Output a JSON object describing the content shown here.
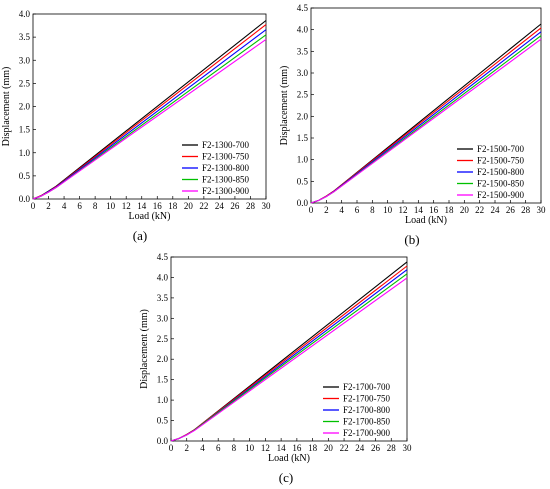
{
  "colors": {
    "axis": "#000000",
    "background": "#ffffff"
  },
  "chart_data": [
    {
      "type": "line",
      "panel_label": "(a)",
      "xlabel": "Load (kN)",
      "ylabel": "Displacement (mm)",
      "xlim": [
        0,
        30
      ],
      "ylim": [
        0,
        4.0
      ],
      "xticks": [
        "0",
        "2",
        "4",
        "6",
        "8",
        "10",
        "12",
        "14",
        "16",
        "18",
        "20",
        "22",
        "24",
        "26",
        "28",
        "30"
      ],
      "yticks": [
        "0.0",
        "0.5",
        "1.0",
        "1.5",
        "2.0",
        "2.5",
        "3.0",
        "3.5",
        "4.0"
      ],
      "legend_position": "bottom-right",
      "series": [
        {
          "name": "F2-1300-700",
          "color": "#000000",
          "x": [
            0,
            1,
            2,
            3,
            30
          ],
          "y": [
            0,
            0.07,
            0.17,
            0.28,
            3.86
          ]
        },
        {
          "name": "F2-1300-750",
          "color": "#ff0000",
          "x": [
            0,
            1,
            2,
            3,
            30
          ],
          "y": [
            0,
            0.07,
            0.16,
            0.27,
            3.77
          ]
        },
        {
          "name": "F2-1300-800",
          "color": "#0000ff",
          "x": [
            0,
            1,
            2,
            3,
            30
          ],
          "y": [
            0,
            0.06,
            0.16,
            0.26,
            3.66
          ]
        },
        {
          "name": "F2-1300-850",
          "color": "#00c000",
          "x": [
            0,
            1,
            2,
            3,
            30
          ],
          "y": [
            0,
            0.06,
            0.15,
            0.25,
            3.55
          ]
        },
        {
          "name": "F2-1300-900",
          "color": "#ff00ff",
          "x": [
            0,
            1,
            2,
            3,
            30
          ],
          "y": [
            0,
            0.06,
            0.15,
            0.25,
            3.45
          ]
        }
      ]
    },
    {
      "type": "line",
      "panel_label": "(b)",
      "xlabel": "Load (kN)",
      "ylabel": "Displacement (mm)",
      "xlim": [
        0,
        30
      ],
      "ylim": [
        0,
        4.5
      ],
      "xticks": [
        "0",
        "2",
        "4",
        "6",
        "8",
        "10",
        "12",
        "14",
        "16",
        "18",
        "20",
        "22",
        "24",
        "26",
        "28",
        "30"
      ],
      "yticks": [
        "0.0",
        "0.5",
        "1.0",
        "1.5",
        "2.0",
        "2.5",
        "3.0",
        "3.5",
        "4.0",
        "4.5"
      ],
      "legend_position": "bottom-right",
      "series": [
        {
          "name": "F2-1500-700",
          "color": "#000000",
          "x": [
            0,
            1,
            2,
            3,
            30
          ],
          "y": [
            0,
            0.06,
            0.16,
            0.28,
            4.13
          ]
        },
        {
          "name": "F2-1500-750",
          "color": "#ff0000",
          "x": [
            0,
            1,
            2,
            3,
            30
          ],
          "y": [
            0,
            0.06,
            0.16,
            0.28,
            4.04
          ]
        },
        {
          "name": "F2-1500-800",
          "color": "#0000ff",
          "x": [
            0,
            1,
            2,
            3,
            30
          ],
          "y": [
            0,
            0.06,
            0.15,
            0.27,
            3.95
          ]
        },
        {
          "name": "F2-1500-850",
          "color": "#00c000",
          "x": [
            0,
            1,
            2,
            3,
            30
          ],
          "y": [
            0,
            0.06,
            0.15,
            0.26,
            3.86
          ]
        },
        {
          "name": "F2-1500-900",
          "color": "#ff00ff",
          "x": [
            0,
            1,
            2,
            3,
            30
          ],
          "y": [
            0,
            0.06,
            0.15,
            0.26,
            3.78
          ]
        }
      ]
    },
    {
      "type": "line",
      "panel_label": "(c)",
      "xlabel": "Load (kN)",
      "ylabel": "Displacement (mm)",
      "xlim": [
        0,
        30
      ],
      "ylim": [
        0,
        4.5
      ],
      "xticks": [
        "0",
        "2",
        "4",
        "6",
        "8",
        "10",
        "12",
        "14",
        "16",
        "18",
        "20",
        "22",
        "24",
        "26",
        "28",
        "30"
      ],
      "yticks": [
        "0.0",
        "0.5",
        "1.0",
        "1.5",
        "2.0",
        "2.5",
        "3.0",
        "3.5",
        "4.0",
        "4.5"
      ],
      "legend_position": "bottom-right",
      "series": [
        {
          "name": "F2-1700-700",
          "color": "#000000",
          "x": [
            0,
            1,
            2,
            3,
            30
          ],
          "y": [
            0,
            0.06,
            0.16,
            0.28,
            4.38
          ]
        },
        {
          "name": "F2-1700-750",
          "color": "#ff0000",
          "x": [
            0,
            1,
            2,
            3,
            30
          ],
          "y": [
            0,
            0.06,
            0.16,
            0.28,
            4.28
          ]
        },
        {
          "name": "F2-1700-800",
          "color": "#0000ff",
          "x": [
            0,
            1,
            2,
            3,
            30
          ],
          "y": [
            0,
            0.06,
            0.15,
            0.27,
            4.19
          ]
        },
        {
          "name": "F2-1700-850",
          "color": "#00c000",
          "x": [
            0,
            1,
            2,
            3,
            30
          ],
          "y": [
            0,
            0.06,
            0.15,
            0.27,
            4.09
          ]
        },
        {
          "name": "F2-1700-900",
          "color": "#ff00ff",
          "x": [
            0,
            1,
            2,
            3,
            30
          ],
          "y": [
            0,
            0.06,
            0.15,
            0.26,
            3.99
          ]
        }
      ]
    }
  ]
}
